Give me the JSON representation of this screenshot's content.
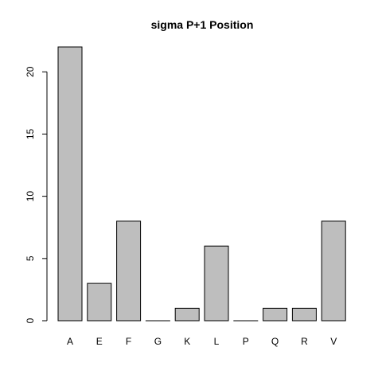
{
  "chart_data": {
    "type": "bar",
    "title": "sigma P+1 Position",
    "xlabel": "",
    "ylabel": "",
    "categories": [
      "A",
      "E",
      "F",
      "G",
      "K",
      "L",
      "P",
      "Q",
      "R",
      "V"
    ],
    "values": [
      22,
      3,
      8,
      0,
      1,
      6,
      0,
      1,
      1,
      8
    ],
    "ylim": [
      0,
      22
    ],
    "yticks": [
      0,
      5,
      10,
      15,
      20
    ],
    "ytick_labels": [
      "0",
      "5",
      "10",
      "15",
      "20"
    ],
    "colors": {
      "bar_fill": "#bebebe",
      "bar_stroke": "#000000"
    },
    "grid": false,
    "legend": "none"
  }
}
